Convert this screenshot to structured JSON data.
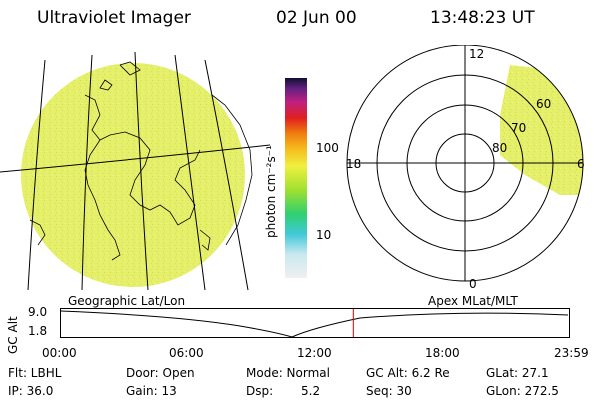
{
  "header": {
    "instrument": "Ultraviolet Imager",
    "date": "02 Jun 00",
    "time": "13:48:23 UT"
  },
  "colorbar": {
    "unit_label": "photon cm⁻²s⁻¹",
    "ticks": [
      "100",
      "10"
    ]
  },
  "polar_plot": {
    "mlt_labels": [
      "12",
      "18",
      "6",
      "0"
    ],
    "mlat_labels": [
      "60",
      "70",
      "80"
    ]
  },
  "timeline": {
    "left_title": "Geographic Lat/Lon",
    "right_title": "Apex MLat/MLT",
    "y_axis_label": "GC Alt",
    "y_ticks": [
      "9.0",
      "1.8"
    ],
    "x_ticks": [
      "00:00",
      "06:00",
      "12:00",
      "18:00",
      "23:59"
    ],
    "current_time_hours": 13.81
  },
  "info": {
    "flt": "Flt: LBHL",
    "ip": "IP: 36.0",
    "door": "Door: Open",
    "gain": "Gain: 13",
    "mode": "Mode: Normal",
    "dsp_label": "Dsp:",
    "dsp_value": "5.2",
    "gc_alt": "GC Alt: 6.2 Re",
    "seq": "Seq: 30",
    "glat": "GLat:  27.1",
    "glon": "GLon: 272.5"
  },
  "colors": {
    "image_fill": "#e8f070",
    "line": "#000000",
    "marker": "#cc0000"
  }
}
